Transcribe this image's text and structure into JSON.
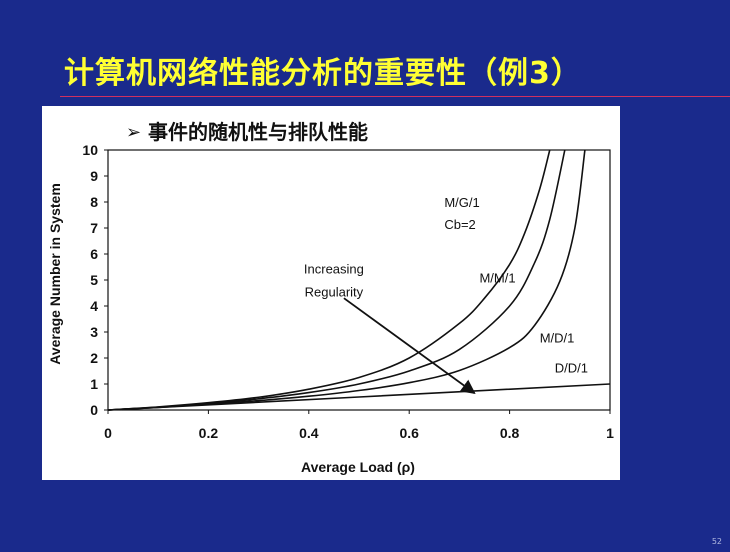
{
  "slide": {
    "title": "计算机网络性能分析的重要性（例3）",
    "page_number": "52",
    "colors": {
      "background": "#1a2a8c",
      "title": "#ffff33",
      "rule": "#d03060"
    }
  },
  "figure": {
    "subtitle_bullet": "➢",
    "subtitle": "事件的随机性与排队性能"
  },
  "chart_data": {
    "type": "line",
    "xlabel": "Average Load (ρ)",
    "ylabel": "Average Number in System",
    "xlim": [
      0,
      1
    ],
    "ylim": [
      0,
      10
    ],
    "xticks": [
      "0",
      "0.2",
      "0.4",
      "0.6",
      "0.8",
      "1"
    ],
    "yticks": [
      "0",
      "1",
      "2",
      "3",
      "4",
      "5",
      "6",
      "7",
      "8",
      "9",
      "10"
    ],
    "grid": false,
    "series": [
      {
        "name": "M/G/1",
        "label_sub": "Cb=2",
        "x": [
          0,
          0.1,
          0.2,
          0.3,
          0.4,
          0.5,
          0.6,
          0.7,
          0.75,
          0.8,
          0.83,
          0.86,
          0.88
        ],
        "y": [
          0,
          0.12,
          0.28,
          0.49,
          0.8,
          1.25,
          2.0,
          3.33,
          4.3,
          5.6,
          6.8,
          8.5,
          10
        ]
      },
      {
        "name": "M/M/1",
        "x": [
          0,
          0.1,
          0.2,
          0.3,
          0.4,
          0.5,
          0.6,
          0.7,
          0.8,
          0.85,
          0.88,
          0.91
        ],
        "y": [
          0,
          0.11,
          0.25,
          0.43,
          0.67,
          1.0,
          1.5,
          2.33,
          4.0,
          5.67,
          7.33,
          10
        ]
      },
      {
        "name": "M/D/1",
        "x": [
          0,
          0.1,
          0.2,
          0.3,
          0.4,
          0.5,
          0.6,
          0.7,
          0.8,
          0.85,
          0.9,
          0.93,
          0.95
        ],
        "y": [
          0,
          0.1,
          0.23,
          0.36,
          0.53,
          0.75,
          1.05,
          1.52,
          2.4,
          3.26,
          4.95,
          7.0,
          10
        ]
      },
      {
        "name": "D/D/1",
        "x": [
          0,
          1
        ],
        "y": [
          0,
          1
        ]
      }
    ],
    "annotations": [
      {
        "text_lines": [
          "Increasing",
          "Regularity"
        ],
        "arrow_from": [
          0.47,
          4.3
        ],
        "arrow_to": [
          0.73,
          0.65
        ]
      }
    ]
  }
}
